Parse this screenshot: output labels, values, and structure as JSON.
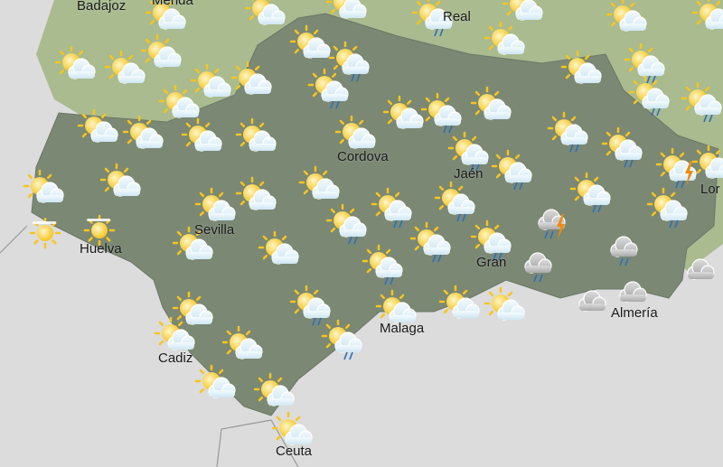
{
  "colors": {
    "sea": "#dcdcdc",
    "land_region": "#7b8874",
    "land_outside": "#a9bb8f",
    "sun": "#f7c51e",
    "cloud": "#e6f3fa",
    "rain": "#2a6fc0",
    "bolt": "#f08a10",
    "grey_cloud": "#c8c8c8"
  },
  "cities": [
    {
      "name": "Badajoz"
    },
    {
      "name": "Merida"
    },
    {
      "name": "Real"
    },
    {
      "name": "Cordova"
    },
    {
      "name": "Jaén"
    },
    {
      "name": "Sevilla"
    },
    {
      "name": "Huelva"
    },
    {
      "name": "Gran"
    },
    {
      "name": "Almería"
    },
    {
      "name": "Malaga"
    },
    {
      "name": "Cadiz"
    },
    {
      "name": "Ceuta"
    },
    {
      "name": "Lor"
    }
  ],
  "weather_icons": [
    "partly-cloudy",
    "partly-cloudy",
    "partly-cloudy",
    "partly-cloudy-rain",
    "partly-cloudy",
    "partly-cloudy",
    "partly-cloudy",
    "partly-cloudy",
    "partly-cloudy",
    "partly-cloudy",
    "partly-cloudy",
    "partly-cloudy",
    "partly-cloudy",
    "partly-cloudy-rain",
    "partly-cloudy-rain",
    "partly-cloudy",
    "partly-cloudy",
    "partly-cloudy-rain",
    "partly-cloudy-rain",
    "partly-cloudy-rain",
    "partly-cloudy",
    "partly-cloudy",
    "partly-cloudy",
    "partly-cloudy",
    "partly-cloudy",
    "partly-cloudy",
    "partly-cloudy",
    "partly-cloudy-rain",
    "partly-cloudy",
    "partly-cloudy-rain",
    "partly-cloudy-rain",
    "partly-cloudy-rain",
    "partly-cloudy-rain",
    "partly-cloudy-storm",
    "partly-cloudy",
    "partly-cloudy",
    "partly-cloudy",
    "partly-cloudy",
    "partly-cloudy",
    "partly-cloudy",
    "partly-cloudy-rain",
    "partly-cloudy-rain",
    "partly-cloudy-rain",
    "partly-cloudy-rain",
    "partly-cloudy-rain",
    "sunny-haze",
    "sunny-haze",
    "partly-cloudy",
    "partly-cloudy",
    "partly-cloudy-rain",
    "partly-cloudy-rain",
    "partly-cloudy-rain",
    "storm",
    "cloudy-rain",
    "cloudy-rain",
    "cloudy",
    "partly-cloudy",
    "partly-cloudy-rain",
    "partly-cloudy",
    "partly-cloudy",
    "partly-cloudy",
    "cloudy",
    "cloudy",
    "partly-cloudy",
    "partly-cloudy",
    "partly-cloudy-rain",
    "partly-cloudy",
    "partly-cloudy",
    "partly-cloudy"
  ]
}
